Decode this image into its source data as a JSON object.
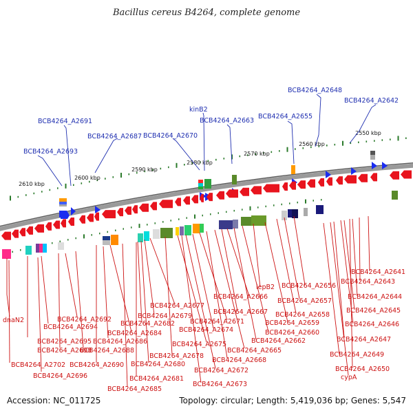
{
  "header": {
    "title": "Bacillus cereus B4264, complete genome"
  },
  "footer": {
    "accession": "Accession: NC_011725",
    "summary": "Topology: circular; Length: 5,419,036 bp; Genes: 5,547"
  },
  "colors": {
    "blue": "#1f2fb0",
    "red": "#cc1111",
    "backbone": "#8a8a8a",
    "tick": "#2a7a2a",
    "arrow_red": "#e8141e",
    "arrow_blue": "#1a2cf0"
  },
  "scale_labels": [
    "2610 kbp",
    "2600 kbp",
    "2590 kbp",
    "2580 kbp",
    "2570 kbp",
    "2560 kbp",
    "2550 kbp"
  ],
  "blue_labels": [
    "BCB4264_A2648",
    "BCB4264_A2642",
    "kinB2",
    "BCB4264_A2663",
    "BCB4264_A2655",
    "BCB4264_A2691",
    "BCB4264_A2687",
    "BCB4264_A2670",
    "BCB4264_A2693"
  ],
  "red_labels": [
    "dnaN2",
    "BCB4264_A2692",
    "BCB4264_A2694",
    "BCB4264_A2695",
    "BCB4264_A2698",
    "BCB4264_A2702",
    "BCB4264_A2696",
    "BCB4264_A2690",
    "BCB4264_A2688",
    "BCB4264_A2686",
    "BCB4264_A2684",
    "BCB4264_A2682",
    "BCB4264_A2679",
    "BCB4264_A2677",
    "BCB4264_A2680",
    "BCB4264_A2681",
    "BCB4264_A2685",
    "BCB4264_A2678",
    "BCB4264_A2675",
    "BCB4264_A2674",
    "BCB4264_A2671",
    "BCB4264_A2672",
    "BCB4264_A2673",
    "BCB4264_A2668",
    "BCB4264_A2667",
    "BCB4264_A2666",
    "BCB4264_A2665",
    "BCB4264_A2662",
    "BCB4264_A2660",
    "lepB2",
    "BCB4264_A2659",
    "BCB4264_A2658",
    "BCB4264_A2657",
    "BCB4264_A2656",
    "BCB4264_A2641",
    "BCB4264_A2643",
    "BCB4264_A2644",
    "BCB4264_A2645",
    "BCB4264_A2646",
    "BCB4264_A2647",
    "BCB4264_A2649",
    "BCB4264_A2650",
    "cypA"
  ]
}
